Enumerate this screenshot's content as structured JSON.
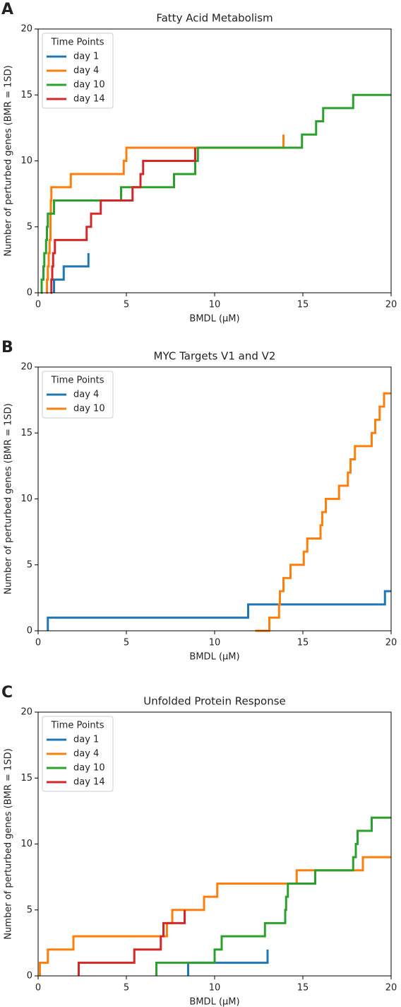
{
  "chart_data": [
    {
      "type": "step",
      "panel_label": "A",
      "title": "Fatty Acid Metabolism",
      "x_label": "BMDL (μM)",
      "y_label": "Number of perturbed genes (BMR = 1SD)",
      "legend_title": "Time Points",
      "legend": "upper left",
      "xlim": [
        0,
        20
      ],
      "ylim": [
        0,
        20
      ],
      "xticks": [
        0,
        5,
        10,
        15,
        20
      ],
      "yticks": [
        0,
        5,
        10,
        15,
        20
      ],
      "series": [
        {
          "name": "day 1",
          "color": "#1f77b4",
          "x": [
            0.9,
            0.9,
            1.45,
            2.85
          ],
          "values": [
            0,
            1,
            2,
            3
          ]
        },
        {
          "name": "day 4",
          "color": "#ff7f0e",
          "x": [
            0.45,
            0.5,
            0.55,
            0.6,
            0.65,
            0.7,
            0.7,
            0.72,
            0.75,
            1.85,
            4.85,
            5.0,
            13.9
          ],
          "values": [
            0,
            1,
            2,
            3,
            4,
            5,
            6,
            7,
            8,
            9,
            10,
            11,
            12
          ]
        },
        {
          "name": "day 10",
          "color": "#2ca02c",
          "x": [
            0.15,
            0.2,
            0.3,
            0.35,
            0.45,
            0.5,
            0.55,
            0.9,
            4.7,
            7.7,
            8.9,
            9.05,
            14.95,
            15.75,
            16.15,
            17.85,
            20
          ],
          "values": [
            0,
            1,
            2,
            3,
            4,
            5,
            6,
            7,
            8,
            9,
            10,
            11,
            12,
            13,
            14,
            15,
            15
          ]
        },
        {
          "name": "day 14",
          "color": "#d62728",
          "x": [
            0.7,
            0.75,
            0.8,
            0.85,
            0.95,
            2.75,
            3.0,
            3.55,
            5.35,
            5.8,
            5.95,
            8.9
          ],
          "values": [
            0,
            1,
            2,
            3,
            4,
            5,
            6,
            7,
            8,
            9,
            10,
            11
          ]
        }
      ]
    },
    {
      "type": "step",
      "panel_label": "B",
      "title": "MYC Targets V1 and V2",
      "x_label": "BMDL (μM)",
      "y_label": "Number of perturbed genes (BMR = 1SD)",
      "legend_title": "Time Points",
      "legend": "upper left",
      "xlim": [
        0,
        20
      ],
      "ylim": [
        0,
        20
      ],
      "xticks": [
        0,
        5,
        10,
        15,
        20
      ],
      "yticks": [
        0,
        5,
        10,
        15,
        20
      ],
      "series": [
        {
          "name": "day 4",
          "color": "#1f77b4",
          "x": [
            0.55,
            0.55,
            11.9,
            19.65,
            20
          ],
          "values": [
            0,
            1,
            2,
            3,
            3
          ]
        },
        {
          "name": "day 10",
          "color": "#ff7f0e",
          "x": [
            12.3,
            13.1,
            13.65,
            13.7,
            13.9,
            14.3,
            15.05,
            15.25,
            16.0,
            16.1,
            16.3,
            17.05,
            17.55,
            17.7,
            17.95,
            18.9,
            19.1,
            19.35,
            19.6,
            20
          ],
          "values": [
            0,
            1,
            2,
            3,
            4,
            5,
            6,
            7,
            8,
            9,
            10,
            11,
            12,
            13,
            14,
            15,
            16,
            17,
            18,
            18
          ]
        }
      ]
    },
    {
      "type": "step",
      "panel_label": "C",
      "title": "Unfolded Protein Response",
      "x_label": "BMDL (μM)",
      "y_label": "Number of perturbed genes (BMR = 1SD)",
      "legend_title": "Time Points",
      "legend": "upper left",
      "xlim": [
        0,
        20
      ],
      "ylim": [
        0,
        20
      ],
      "xticks": [
        0,
        5,
        10,
        15,
        20
      ],
      "yticks": [
        0,
        5,
        10,
        15,
        20
      ],
      "series": [
        {
          "name": "day 1",
          "color": "#1f77b4",
          "x": [
            8.5,
            8.5,
            13.0
          ],
          "values": [
            0,
            1,
            2
          ]
        },
        {
          "name": "day 4",
          "color": "#ff7f0e",
          "x": [
            0.1,
            0.1,
            0.55,
            2.0,
            7.3,
            7.6,
            9.4,
            10.15,
            14.65,
            18.4,
            20
          ],
          "values": [
            0,
            1,
            2,
            3,
            4,
            5,
            6,
            7,
            8,
            9,
            9
          ]
        },
        {
          "name": "day 10",
          "color": "#2ca02c",
          "x": [
            6.7,
            6.7,
            10.0,
            10.4,
            12.85,
            14.0,
            14.05,
            14.15,
            15.7,
            17.85,
            18.0,
            18.1,
            18.9,
            20
          ],
          "values": [
            0,
            1,
            2,
            3,
            4,
            5,
            6,
            7,
            8,
            9,
            10,
            11,
            12,
            12
          ]
        },
        {
          "name": "day 14",
          "color": "#d62728",
          "x": [
            2.3,
            2.3,
            5.45,
            6.95,
            7.1,
            8.3
          ],
          "values": [
            0,
            1,
            2,
            3,
            4,
            5
          ]
        }
      ]
    }
  ]
}
